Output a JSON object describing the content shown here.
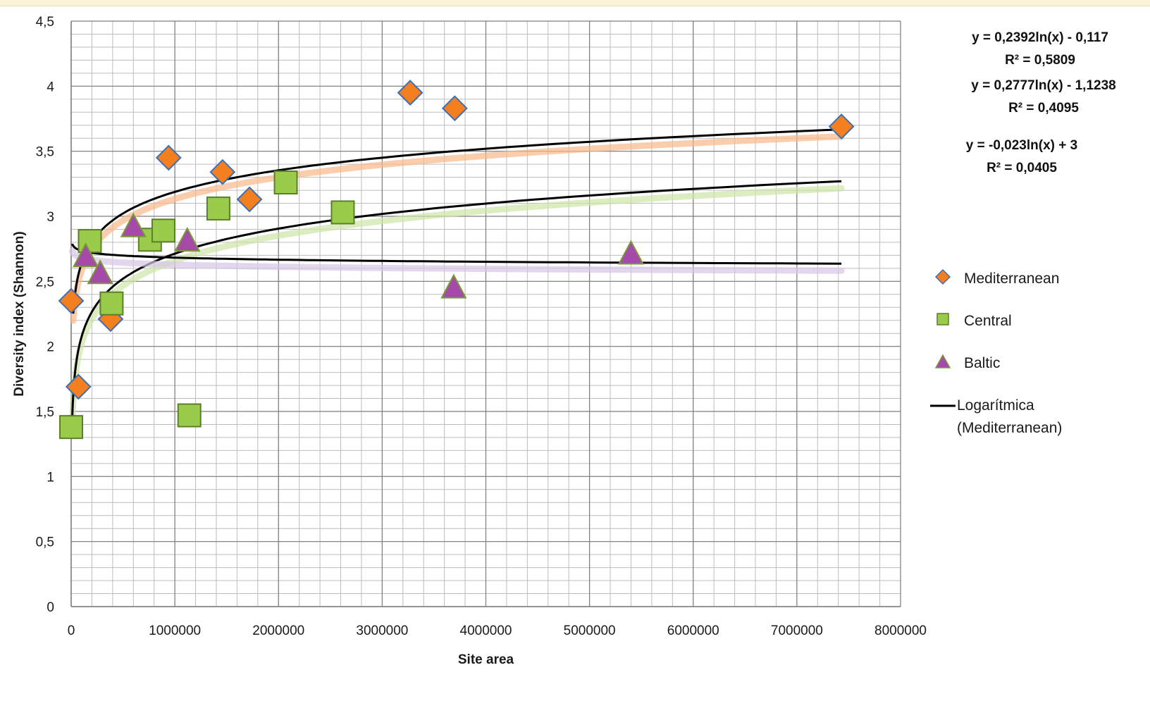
{
  "chart_data": {
    "type": "scatter",
    "title": "",
    "xlabel": "Site area",
    "ylabel": "Diversity index (Shannon)",
    "xlim": [
      0,
      8000000
    ],
    "ylim": [
      0,
      4.5
    ],
    "xticks": [
      0,
      1000000,
      2000000,
      3000000,
      4000000,
      5000000,
      6000000,
      7000000,
      8000000
    ],
    "xtick_labels": [
      "0",
      "1000000",
      "2000000",
      "3000000",
      "4000000",
      "5000000",
      "6000000",
      "7000000",
      "8000000"
    ],
    "yticks": [
      0,
      0.5,
      1,
      1.5,
      2,
      2.5,
      3,
      3.5,
      4,
      4.5
    ],
    "ytick_labels": [
      "0",
      "0,5",
      "1",
      "1,5",
      "2",
      "2,5",
      "3",
      "3,5",
      "4",
      "4,5"
    ],
    "grid": true,
    "legend_position": "right",
    "series": [
      {
        "name": "Mediterranean",
        "marker": "diamond",
        "color": "#f47f1f",
        "trend_color": "#f8b98a",
        "points": [
          [
            0,
            2.35
          ],
          [
            70000,
            1.69
          ],
          [
            380000,
            2.21
          ],
          [
            940000,
            3.45
          ],
          [
            1460000,
            3.34
          ],
          [
            1720000,
            3.13
          ],
          [
            3270000,
            3.95
          ],
          [
            3700000,
            3.83
          ],
          [
            7430000,
            3.69
          ]
        ]
      },
      {
        "name": "Central",
        "marker": "square",
        "color": "#9acb4a",
        "trend_color": "#cde6a8",
        "points": [
          [
            0,
            1.38
          ],
          [
            180000,
            2.81
          ],
          [
            390000,
            2.33
          ],
          [
            760000,
            2.82
          ],
          [
            890000,
            2.89
          ],
          [
            1140000,
            1.47
          ],
          [
            1420000,
            3.06
          ],
          [
            2070000,
            3.26
          ],
          [
            2620000,
            3.03
          ]
        ]
      },
      {
        "name": "Baltic",
        "marker": "triangle",
        "color": "#a54aa8",
        "trend_color": "#d7c6e6",
        "points": [
          [
            140000,
            2.69
          ],
          [
            280000,
            2.56
          ],
          [
            600000,
            2.92
          ],
          [
            1120000,
            2.81
          ],
          [
            3690000,
            2.45
          ],
          [
            5400000,
            2.71
          ]
        ]
      }
    ],
    "trendlines": [
      {
        "series": "Mediterranean",
        "type": "log",
        "a": 0.2392,
        "b": -0.117,
        "r2": 0.5809,
        "x_range": [
          20000,
          7430000
        ],
        "equation": "y = 0,2392ln(x) - 0,117",
        "r2_label": "R² = 0,5809"
      },
      {
        "series": "Central",
        "type": "log",
        "a": 0.2777,
        "b": -1.1238,
        "r2": 0.4095,
        "x_range": [
          10000,
          7430000
        ],
        "equation": "y = 0,2777ln(x) - 1,1238",
        "r2_label": "R² = 0,4095"
      },
      {
        "series": "Baltic",
        "type": "log",
        "a": -0.023,
        "b": 3,
        "r2": 0.0405,
        "x_range": [
          10000,
          7430000
        ],
        "equation": "y = -0,023ln(x) + 3",
        "r2_label": "R² = 0,0405"
      }
    ],
    "legend": [
      {
        "label": "Mediterranean",
        "marker": "diamond"
      },
      {
        "label": "Central",
        "marker": "square"
      },
      {
        "label": "Baltic",
        "marker": "triangle"
      },
      {
        "label": "Logarítmica (Mediterranean)",
        "line1": "Logarítmica",
        "line2": "(Mediterranean)",
        "marker": "line"
      }
    ]
  }
}
